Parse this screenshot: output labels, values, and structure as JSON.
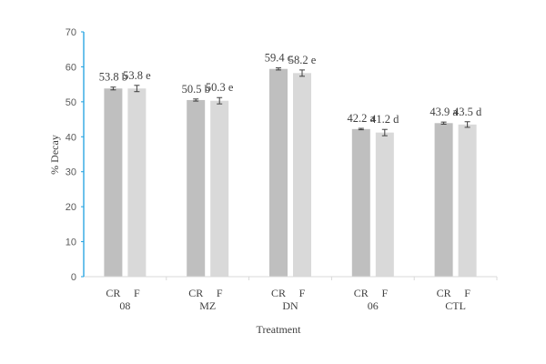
{
  "chart_data": {
    "type": "bar",
    "xlabel": "Treatment",
    "ylabel": "% Decay",
    "ylim": [
      0,
      70
    ],
    "yticks": [
      0,
      10,
      20,
      30,
      40,
      50,
      60,
      70
    ],
    "grid": false,
    "categories": [
      "08",
      "MZ",
      "DN",
      "06",
      "CTL"
    ],
    "subcategories": [
      "CR",
      "F"
    ],
    "series": [
      {
        "sub": "CR",
        "color": "#bfbfbf",
        "values": [
          53.8,
          50.5,
          59.4,
          42.2,
          43.9
        ],
        "errors": [
          0.4,
          0.3,
          0.3,
          0.2,
          0.3
        ],
        "labels": [
          "53.8 b",
          "50.5 b",
          "59.4 c",
          "42.2 a",
          "43.9 a"
        ]
      },
      {
        "sub": "F",
        "color": "#d9d9d9",
        "values": [
          53.8,
          50.3,
          58.2,
          41.2,
          43.5
        ],
        "errors": [
          0.9,
          0.9,
          0.9,
          0.9,
          0.8
        ],
        "labels": [
          "53.8 e",
          "50.3 e",
          "58.2 e",
          "41.2 d",
          "43.5 d"
        ]
      }
    ],
    "y_axis_color": "#1ea0e0",
    "x_axis_color": "#d9d9d9"
  }
}
